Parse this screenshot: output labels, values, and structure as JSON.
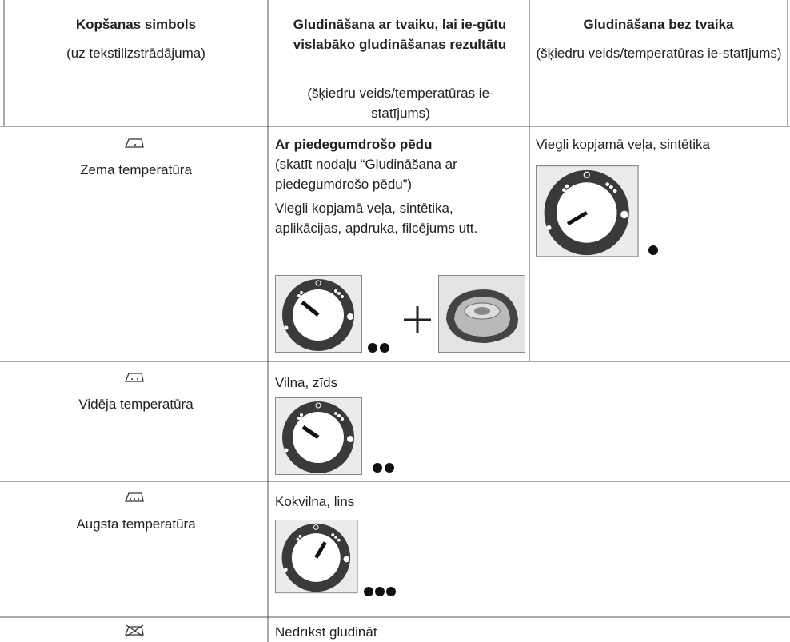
{
  "table": {
    "header": [
      {
        "title": "Kopšanas simbols",
        "subtitle": "(uz tekstilizstrādājuma)"
      },
      {
        "title": "Gludināšana ar tvaiku, lai ie-gūtu vislabāko gludināšanas rezultātu",
        "subtitle": "(šķiedru veids/temperatūras ie-statījums)"
      },
      {
        "title": "Gludināšana bez tvaika",
        "subtitle": "(šķiedru veids/temperatūras ie-statījums)"
      }
    ],
    "rows": [
      {
        "label": "Zema temperatūra",
        "steam_title": "Ar piedegumdrošo pēdu",
        "steam_note": "(skatīt nodaļu “Gludināšana ar piedegumdrošo pēdu”)",
        "steam_text": "Viegli kopjamā veļa, sintētika, aplikācijas, apdruka, filcējums utt.",
        "dry_text": "Viegli kopjamā veļa, sintētika"
      },
      {
        "label": "Vidēja temperatūra",
        "text": "Vilna, zīds"
      },
      {
        "label": "Augsta temperatūra",
        "text": "Kokvilna, lins"
      },
      {
        "text": "Nedrīkst gludināt"
      }
    ]
  }
}
